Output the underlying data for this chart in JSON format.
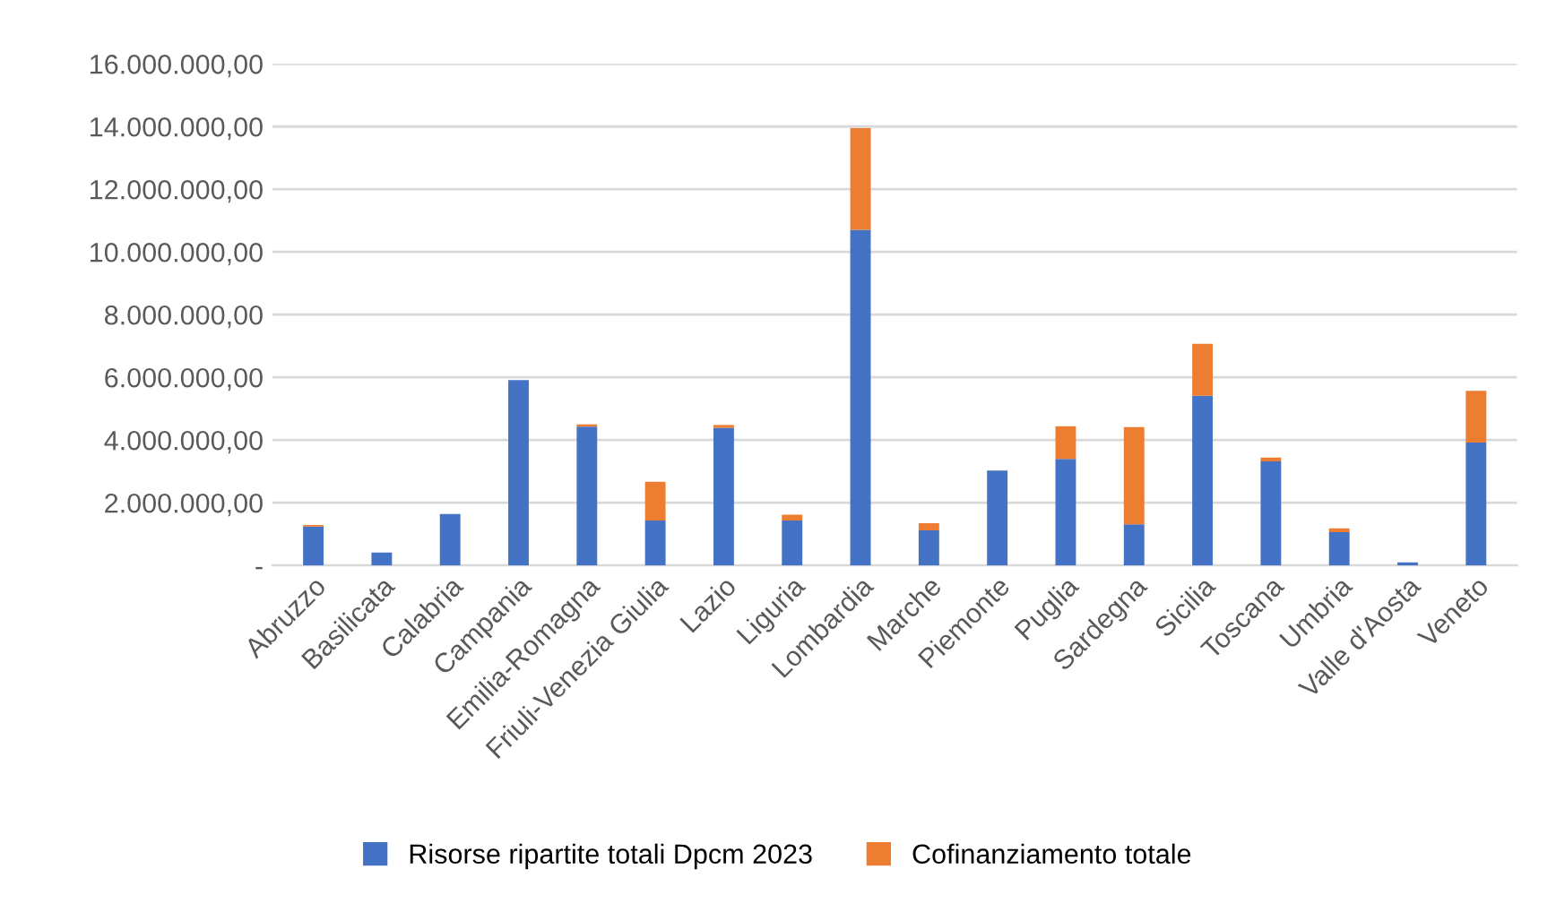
{
  "chart_data": {
    "type": "bar",
    "stacked": true,
    "categories": [
      "Abruzzo",
      "Basilicata",
      "Calabria",
      "Campania",
      "Emilia-Romagna",
      "Friuli-Venezia Giulia",
      "Lazio",
      "Liguria",
      "Lombardia",
      "Marche",
      "Piemonte",
      "Puglia",
      "Sardegna",
      "Sicilia",
      "Toscana",
      "Umbria",
      "Valle d'Aosta",
      "Veneto"
    ],
    "series": [
      {
        "name": "Risorse ripartite totali Dpcm 2023",
        "color": "#4472c4",
        "values": [
          1240000,
          410000,
          1640000,
          5910000,
          4430000,
          1430000,
          4390000,
          1430000,
          10710000,
          1120000,
          3030000,
          3400000,
          1310000,
          5410000,
          3320000,
          1060000,
          100000,
          3920000
        ]
      },
      {
        "name": "Cofinanziamento totale",
        "color": "#ed7d31",
        "values": [
          50000,
          0,
          0,
          0,
          70000,
          1240000,
          90000,
          190000,
          3240000,
          230000,
          0,
          1040000,
          3100000,
          1660000,
          120000,
          120000,
          0,
          1650000
        ]
      }
    ],
    "ylim": [
      0,
      16000000
    ],
    "yticks": [
      {
        "value": 0,
        "label": "-"
      },
      {
        "value": 2000000,
        "label": "2.000.000,00"
      },
      {
        "value": 4000000,
        "label": "4.000.000,00"
      },
      {
        "value": 6000000,
        "label": "6.000.000,00"
      },
      {
        "value": 8000000,
        "label": "8.000.000,00"
      },
      {
        "value": 10000000,
        "label": "10.000.000,00"
      },
      {
        "value": 12000000,
        "label": "12.000.000,00"
      },
      {
        "value": 14000000,
        "label": "14.000.000,00"
      },
      {
        "value": 16000000,
        "label": "16.000.000,00"
      }
    ],
    "grid": "y",
    "legend": "bottom"
  }
}
